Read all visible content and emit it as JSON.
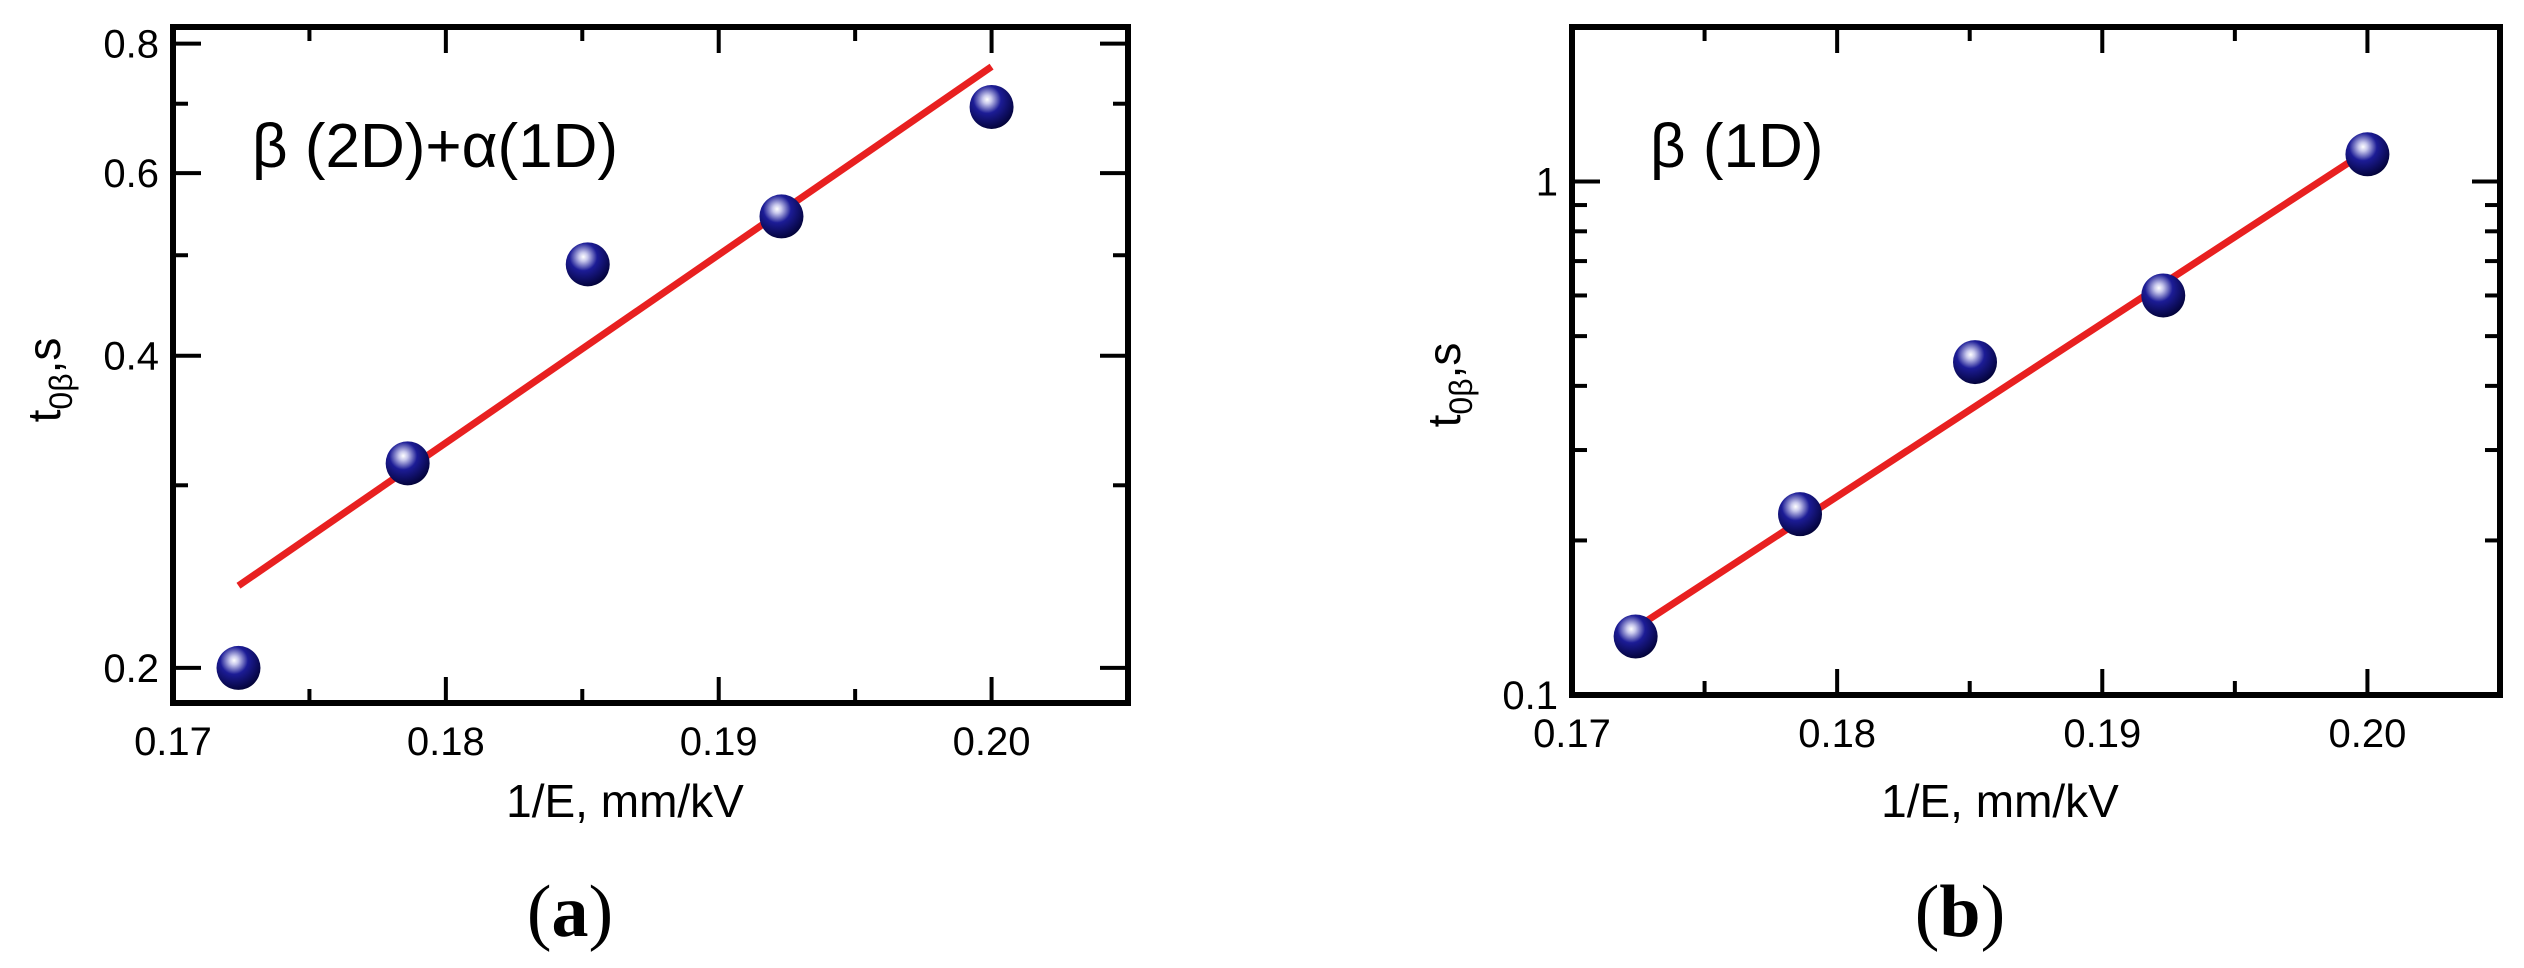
{
  "chart_data": [
    {
      "type": "scatter",
      "panel_label": "(a)",
      "annotation": "β (2D)+α(1D)",
      "xlabel": "1/E, mm/kV",
      "ylabel": {
        "main": "t",
        "sub": "0β",
        "tail": ",s"
      },
      "xlim": [
        0.17,
        0.205
      ],
      "ylim": [
        0.185,
        0.83
      ],
      "yscale": "log",
      "x_ticks": [
        "0.17",
        "0.18",
        "0.19",
        "0.20"
      ],
      "y_ticks": [
        "0.2",
        "0.4",
        "0.6",
        "0.8"
      ],
      "series": [
        {
          "type": "scatter",
          "color": "#0a0a6e",
          "x": [
            0.1724,
            0.1786,
            0.1852,
            0.1923,
            0.2
          ],
          "y": [
            0.2,
            0.315,
            0.49,
            0.545,
            0.695
          ]
        },
        {
          "type": "line",
          "color": "#e82020",
          "x": [
            0.1724,
            0.2
          ],
          "y": [
            0.24,
            0.76
          ]
        }
      ]
    },
    {
      "type": "scatter",
      "panel_label": "(b)",
      "annotation": "β (1D)",
      "xlabel": "1/E, mm/kV",
      "ylabel": {
        "main": "t",
        "sub": "0β",
        "tail": ",s"
      },
      "xlim": [
        0.17,
        0.205
      ],
      "ylim": [
        0.1,
        2.0
      ],
      "yscale": "log",
      "x_ticks": [
        "0.17",
        "0.18",
        "0.19",
        "0.20"
      ],
      "y_ticks": [
        "0.1",
        "1"
      ],
      "series": [
        {
          "type": "scatter",
          "color": "#0a0a6e",
          "x": [
            0.1724,
            0.1786,
            0.1852,
            0.1923,
            0.2
          ],
          "y": [
            0.13,
            0.225,
            0.445,
            0.6,
            1.13
          ]
        },
        {
          "type": "line",
          "color": "#e82020",
          "x": [
            0.1724,
            0.2
          ],
          "y": [
            0.135,
            1.15
          ]
        }
      ]
    }
  ]
}
